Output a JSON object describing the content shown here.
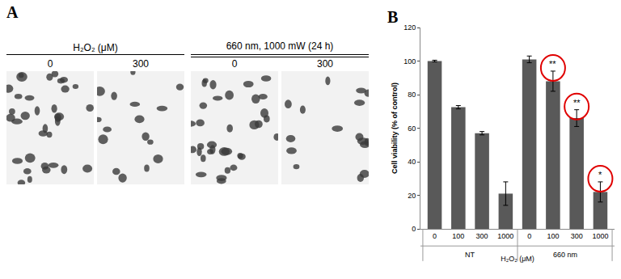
{
  "panel_a": {
    "label": "A",
    "groups": [
      {
        "title": "H₂O₂ (μM)",
        "images": [
          "0",
          "300"
        ]
      },
      {
        "title": "660 nm, 1000 mW (24 h)",
        "images": [
          "0",
          "300"
        ]
      }
    ]
  },
  "chart_data": {
    "type": "bar",
    "title": "B",
    "y_label": "Cell viability (% of control)",
    "x_label": "H₂O₂ (μM)",
    "categories": [
      "0",
      "100",
      "300",
      "1000",
      "0",
      "100",
      "300",
      "1000"
    ],
    "values": [
      100,
      72.5,
      57,
      21,
      101,
      88,
      66,
      22
    ],
    "errors": [
      0.5,
      1,
      1,
      7,
      2,
      6,
      5,
      6
    ],
    "groups": [
      {
        "label": "NT",
        "start": 0,
        "end": 3
      },
      {
        "label": "660 nm",
        "start": 4,
        "end": 7
      }
    ],
    "annotations": [
      {
        "index": 5,
        "text": "**"
      },
      {
        "index": 6,
        "text": "**"
      },
      {
        "index": 7,
        "text": "*"
      }
    ],
    "color": "#595959",
    "ylim": [
      0,
      120
    ],
    "yticks": [
      0,
      20,
      40,
      60,
      80,
      100,
      120
    ],
    "grid": false
  }
}
